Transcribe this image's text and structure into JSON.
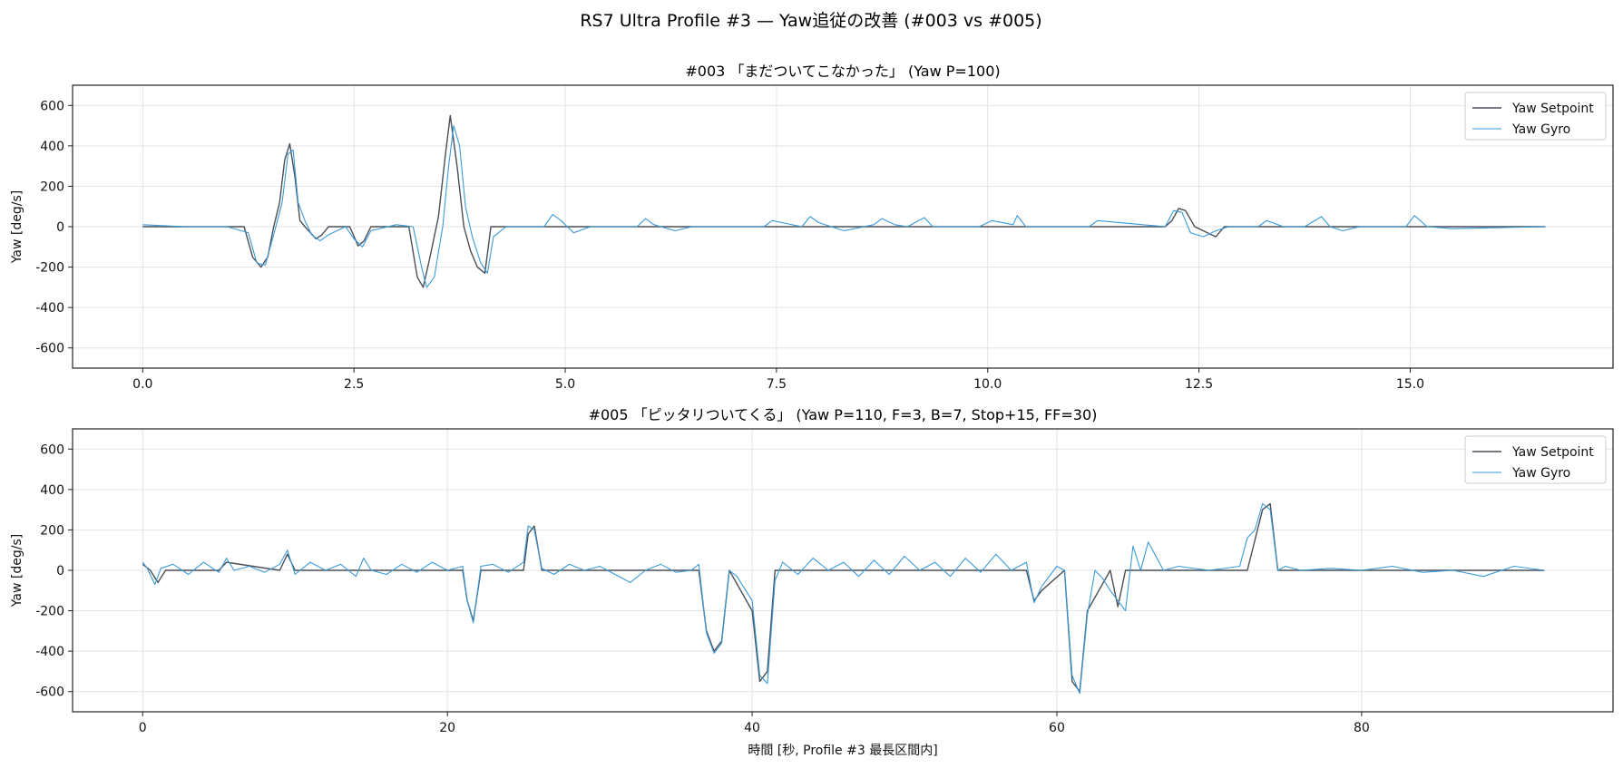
{
  "figure_title": "RS7 Ultra Profile #3 — Yaw追従の改善 (#003 vs #005)",
  "colors": {
    "setpoint": "#4a4f57",
    "gyro": "#3a9ad9",
    "grid": "#e3e3e3",
    "frame": "#222222"
  },
  "chart_data": [
    {
      "type": "line",
      "title": "#003 「まだついてこなかった」 (Yaw P=100)",
      "xlabel": "",
      "ylabel": "Yaw [deg/s]",
      "xlim": [
        -0.83,
        17.4
      ],
      "ylim": [
        -700,
        700
      ],
      "xticks": [
        0.0,
        2.5,
        5.0,
        7.5,
        10.0,
        12.5,
        15.0
      ],
      "xtick_labels": [
        "0.0",
        "2.5",
        "5.0",
        "7.5",
        "10.0",
        "12.5",
        "15.0"
      ],
      "yticks": [
        600,
        400,
        200,
        0,
        -200,
        -400,
        -600
      ],
      "ytick_labels": [
        "600",
        "400",
        "200",
        "0",
        "-200",
        "-400",
        "-600"
      ],
      "grid": true,
      "legend_position": "top-right",
      "series": [
        {
          "name": "Yaw Setpoint",
          "x": [
            0.0,
            1.2,
            1.3,
            1.4,
            1.48,
            1.55,
            1.62,
            1.68,
            1.74,
            1.8,
            1.86,
            1.92,
            2.05,
            2.12,
            2.2,
            2.45,
            2.55,
            2.62,
            2.7,
            3.15,
            3.25,
            3.32,
            3.4,
            3.5,
            3.58,
            3.64,
            3.72,
            3.8,
            3.88,
            3.96,
            4.05,
            4.12,
            12.1,
            12.18,
            12.26,
            12.34,
            12.45,
            12.6,
            12.7,
            12.8,
            16.6
          ],
          "y": [
            0,
            0,
            -150,
            -200,
            -150,
            0,
            120,
            330,
            410,
            250,
            30,
            0,
            -60,
            -40,
            0,
            0,
            -95,
            -70,
            0,
            0,
            -250,
            -300,
            -150,
            50,
            350,
            550,
            300,
            0,
            -120,
            -200,
            -230,
            0,
            0,
            30,
            90,
            80,
            0,
            -30,
            -50,
            0,
            0
          ]
        },
        {
          "name": "Yaw Gyro",
          "x": [
            0.0,
            0.5,
            1.0,
            1.25,
            1.35,
            1.45,
            1.55,
            1.65,
            1.72,
            1.78,
            1.84,
            1.92,
            2.0,
            2.1,
            2.2,
            2.4,
            2.5,
            2.6,
            2.7,
            3.0,
            3.2,
            3.3,
            3.36,
            3.45,
            3.55,
            3.62,
            3.68,
            3.75,
            3.82,
            3.9,
            4.0,
            4.08,
            4.15,
            4.3,
            4.75,
            4.85,
            4.95,
            5.1,
            5.3,
            5.85,
            5.95,
            6.05,
            6.3,
            6.5,
            7.35,
            7.45,
            7.8,
            7.9,
            8.0,
            8.3,
            8.65,
            8.75,
            8.9,
            9.05,
            9.25,
            9.35,
            9.9,
            10.05,
            10.3,
            10.35,
            10.45,
            11.2,
            11.3,
            12.1,
            12.2,
            12.3,
            12.4,
            12.55,
            12.7,
            12.85,
            13.2,
            13.3,
            13.5,
            13.75,
            13.95,
            14.05,
            14.2,
            14.4,
            14.95,
            15.05,
            15.2,
            15.5,
            16.6
          ],
          "y": [
            10,
            0,
            0,
            -30,
            -180,
            -190,
            -40,
            120,
            360,
            380,
            120,
            30,
            -40,
            -70,
            -40,
            0,
            -60,
            -100,
            -20,
            10,
            0,
            -200,
            -300,
            -250,
            0,
            300,
            500,
            400,
            100,
            -50,
            -180,
            -230,
            -50,
            0,
            0,
            60,
            30,
            -30,
            0,
            0,
            40,
            10,
            -20,
            0,
            0,
            30,
            0,
            50,
            20,
            -20,
            10,
            40,
            10,
            0,
            45,
            0,
            0,
            30,
            10,
            55,
            0,
            0,
            30,
            0,
            80,
            70,
            -30,
            -50,
            -20,
            0,
            0,
            30,
            0,
            0,
            50,
            0,
            -20,
            0,
            0,
            55,
            0,
            -10,
            0
          ]
        }
      ]
    },
    {
      "type": "line",
      "title": "#005 「ピッタリついてくる」 (Yaw P=110, F=3, B=7, Stop+15, FF=30)",
      "xlabel": "時間 [秒, Profile #3 最長区間内]",
      "ylabel": "Yaw [deg/s]",
      "xlim": [
        -4.6,
        96.5
      ],
      "ylim": [
        -700,
        700
      ],
      "xticks": [
        0,
        20,
        40,
        60,
        80
      ],
      "xtick_labels": [
        "0",
        "20",
        "40",
        "60",
        "80"
      ],
      "yticks": [
        600,
        400,
        200,
        0,
        -200,
        -400,
        -600
      ],
      "ytick_labels": [
        "600",
        "400",
        "200",
        "0",
        "-200",
        "-400",
        "-600"
      ],
      "grid": true,
      "legend_position": "top-right",
      "series": [
        {
          "name": "Yaw Setpoint",
          "x": [
            0,
            0.5,
            1.0,
            1.5,
            5,
            5.5,
            9,
            9.5,
            10,
            21,
            21.3,
            21.7,
            22.2,
            25,
            25.3,
            25.7,
            26.2,
            36.5,
            37,
            37.5,
            38,
            38.5,
            40,
            40.5,
            41,
            41.5,
            42,
            58,
            58.5,
            59,
            60.5,
            61,
            61.5,
            62,
            63.5,
            64,
            64.5,
            72.5,
            73,
            73.5,
            74,
            74.5,
            92
          ],
          "y": [
            30,
            0,
            -60,
            0,
            0,
            40,
            0,
            80,
            0,
            0,
            -150,
            -250,
            0,
            0,
            180,
            220,
            0,
            0,
            -300,
            -400,
            -350,
            0,
            -200,
            -550,
            -500,
            0,
            0,
            0,
            -150,
            -100,
            0,
            -550,
            -600,
            -200,
            0,
            -180,
            0,
            0,
            150,
            300,
            330,
            0,
            0
          ]
        },
        {
          "name": "Yaw Gyro",
          "x": [
            0,
            0.3,
            0.8,
            1.2,
            2,
            3,
            4,
            5,
            5.5,
            6,
            7,
            8,
            9,
            9.5,
            10,
            11,
            12,
            13,
            14,
            14.5,
            15,
            16,
            17,
            18,
            19,
            20,
            21,
            21.3,
            21.7,
            22.2,
            23,
            24,
            25,
            25.3,
            25.7,
            26.2,
            27,
            28,
            29,
            30,
            31,
            32,
            33,
            34,
            35,
            36,
            36.5,
            37,
            37.5,
            38,
            38.5,
            39,
            40,
            40.5,
            41,
            41.5,
            42,
            43,
            44,
            45,
            46,
            47,
            48,
            49,
            50,
            51,
            52,
            53,
            54,
            55,
            56,
            57,
            58,
            58.5,
            59,
            60,
            60.5,
            61,
            61.5,
            62,
            62.5,
            63,
            63.5,
            64,
            64.5,
            65,
            65.5,
            66,
            67,
            68,
            70,
            72,
            72.5,
            73,
            73.5,
            74,
            74.5,
            75,
            76,
            78,
            80,
            82,
            84,
            86,
            88,
            90,
            92
          ],
          "y": [
            40,
            10,
            -70,
            10,
            30,
            -20,
            40,
            -10,
            60,
            0,
            20,
            -10,
            30,
            100,
            -20,
            40,
            0,
            30,
            -30,
            60,
            0,
            -20,
            30,
            -10,
            40,
            0,
            20,
            -150,
            -260,
            20,
            30,
            -10,
            40,
            220,
            200,
            10,
            -20,
            30,
            0,
            20,
            -20,
            -60,
            0,
            30,
            -10,
            0,
            30,
            -310,
            -410,
            -360,
            0,
            -30,
            -150,
            -520,
            -560,
            -50,
            40,
            -20,
            60,
            0,
            40,
            -30,
            50,
            -20,
            70,
            0,
            40,
            -30,
            60,
            -10,
            80,
            0,
            40,
            -160,
            -80,
            20,
            0,
            -520,
            -610,
            -220,
            0,
            -40,
            -100,
            -150,
            -200,
            120,
            0,
            140,
            0,
            20,
            0,
            20,
            160,
            200,
            330,
            300,
            0,
            20,
            0,
            10,
            0,
            20,
            -10,
            0,
            -30,
            20,
            0
          ]
        }
      ]
    }
  ]
}
